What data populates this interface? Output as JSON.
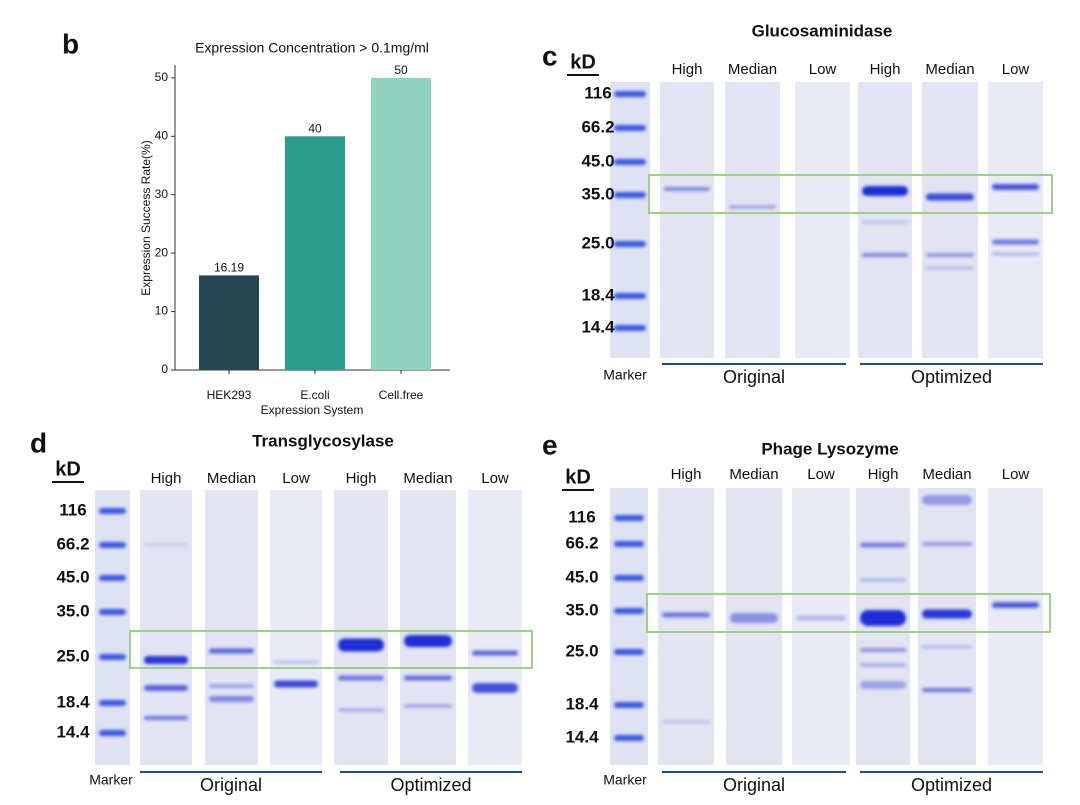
{
  "chart_data": {
    "type": "bar",
    "panel_label": "b",
    "title": "Expression Concentration > 0.1mg/ml",
    "x_label": "Expression System",
    "y_label": "Expression Success Rate(%)",
    "categories": [
      "HEK293",
      "E.coli",
      "Cell.free"
    ],
    "values": [
      16.19,
      40,
      50
    ],
    "colors": [
      "#264653",
      "#2a9d8f",
      "#8fd3be"
    ],
    "ylim": [
      0,
      52.2
    ],
    "yticks": [
      0,
      10,
      20,
      30,
      40,
      50
    ],
    "grid": false
  },
  "gels": [
    {
      "panel_label": "c",
      "title": "Glucosaminidase",
      "unit": "kD",
      "marker_label": "Marker",
      "markers": [
        "116",
        "66.2",
        "45.0",
        "35.0",
        "25.0",
        "18.4",
        "14.4"
      ],
      "lane_labels": [
        "High",
        "Median",
        "Low",
        "High",
        "Median",
        "Low"
      ],
      "groups": [
        "Original",
        "Optimized"
      ]
    },
    {
      "panel_label": "d",
      "title": "Transglycosylase",
      "unit": "kD",
      "marker_label": "Marker",
      "markers": [
        "116",
        "66.2",
        "45.0",
        "35.0",
        "25.0",
        "18.4",
        "14.4"
      ],
      "lane_labels": [
        "High",
        "Median",
        "Low",
        "High",
        "Median",
        "Low"
      ],
      "groups": [
        "Original",
        "Optimized"
      ]
    },
    {
      "panel_label": "e",
      "title": "Phage Lysozyme",
      "unit": "kD",
      "marker_label": "Marker",
      "markers": [
        "116",
        "66.2",
        "45.0",
        "35.0",
        "25.0",
        "18.4",
        "14.4"
      ],
      "lane_labels": [
        "High",
        "Median",
        "Low",
        "High",
        "Median",
        "Low"
      ],
      "groups": [
        "Original",
        "Optimized"
      ]
    }
  ]
}
